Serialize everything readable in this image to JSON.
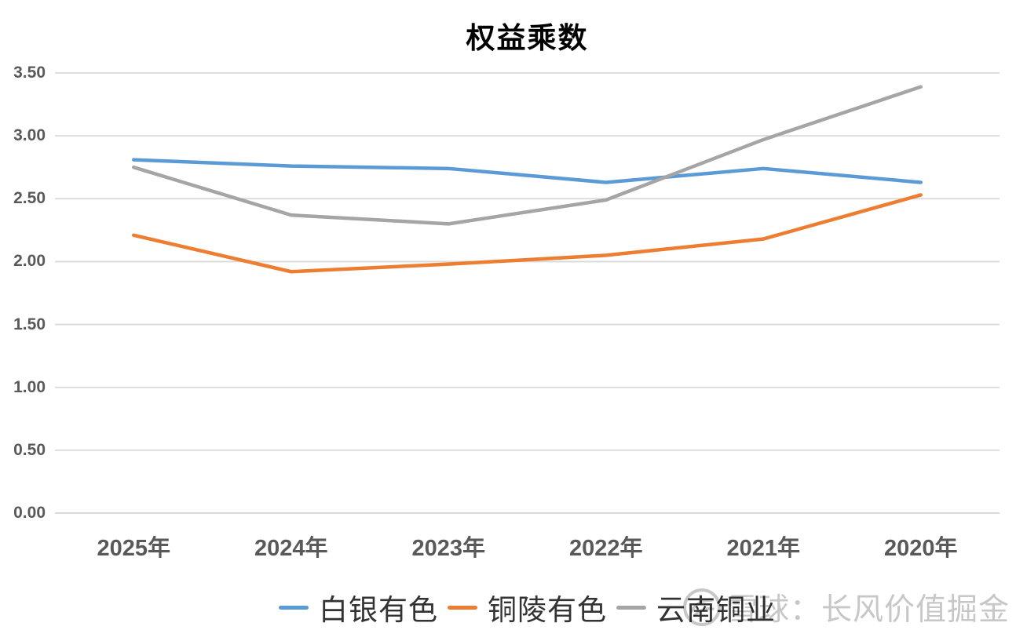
{
  "title": "权益乘数",
  "watermark": {
    "icon": "xueqiu-logo",
    "text": "雪球：长风价值掘金"
  },
  "colors": {
    "grid": "#d9d9d9",
    "axis_text": "#595959",
    "title_text": "#000000",
    "legend_text": "#333333",
    "watermark_text": "#c7c7c7",
    "background": "#ffffff"
  },
  "chart_data": {
    "type": "line",
    "title": "权益乘数",
    "xlabel": "",
    "ylabel": "",
    "categories": [
      "2025年",
      "2024年",
      "2023年",
      "2022年",
      "2021年",
      "2020年"
    ],
    "series": [
      {
        "name": "白银有色",
        "color": "#5B9BD5",
        "values": [
          2.81,
          2.76,
          2.74,
          2.63,
          2.74,
          2.63
        ]
      },
      {
        "name": "铜陵有色",
        "color": "#ED7D31",
        "values": [
          2.21,
          1.92,
          1.98,
          2.05,
          2.18,
          2.53
        ]
      },
      {
        "name": "云南铜业",
        "color": "#A5A5A5",
        "values": [
          2.75,
          2.37,
          2.3,
          2.49,
          2.97,
          3.39
        ]
      }
    ],
    "ylim": [
      0,
      3.5
    ],
    "ytick_step": 0.5,
    "ytick_labels": [
      "0.00",
      "0.50",
      "1.00",
      "1.50",
      "2.00",
      "2.50",
      "3.00",
      "3.50"
    ],
    "ytick_values": [
      0,
      0.5,
      1,
      1.5,
      2,
      2.5,
      3,
      3.5
    ],
    "grid": true,
    "legend_position": "bottom"
  }
}
